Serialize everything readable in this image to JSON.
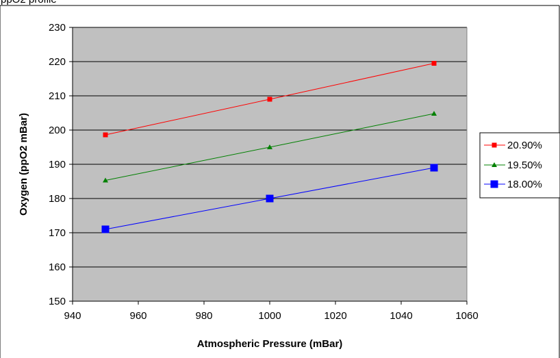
{
  "header": {
    "cut_text": "ppO2 profile"
  },
  "chart_data": {
    "type": "line",
    "x": [
      950,
      1000,
      1050
    ],
    "xlabel": "Atmospheric Pressure (mBar)",
    "ylabel": "Oxygen (ppO2 mBar)",
    "xlim": [
      940,
      1060
    ],
    "ylim": [
      150,
      230
    ],
    "xticks": [
      "940",
      "960",
      "980",
      "1000",
      "1020",
      "1040",
      "1060"
    ],
    "yticks": [
      "150",
      "160",
      "170",
      "180",
      "190",
      "200",
      "210",
      "220",
      "230"
    ],
    "grid": true,
    "legend_position": "right",
    "plot_background": "#c0c0c0",
    "series": [
      {
        "name": "20.90%",
        "color": "#ff0000",
        "marker": "square",
        "values": [
          198.6,
          209.0,
          219.5
        ]
      },
      {
        "name": "19.50%",
        "color": "#008000",
        "marker": "triangle",
        "values": [
          185.3,
          195.0,
          204.8
        ]
      },
      {
        "name": "18.00%",
        "color": "#0000ff",
        "marker": "square-large",
        "values": [
          171.0,
          180.0,
          189.0
        ]
      }
    ]
  }
}
